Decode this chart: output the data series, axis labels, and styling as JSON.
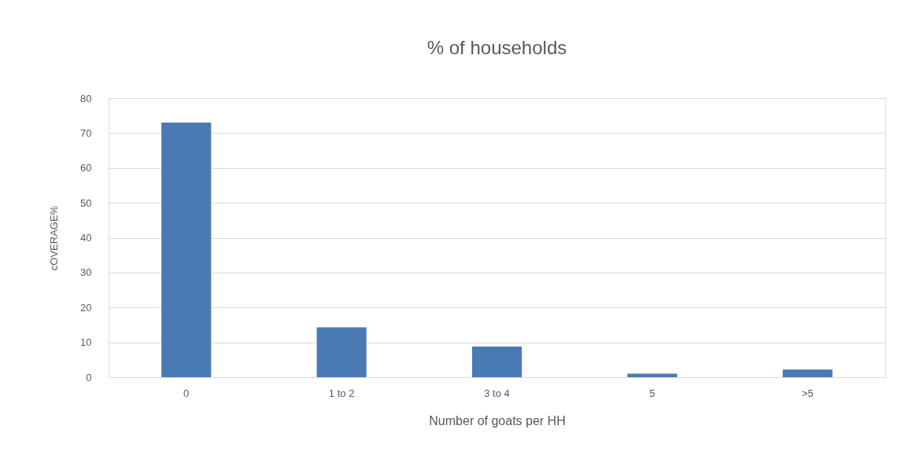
{
  "chart_data": {
    "type": "bar",
    "title": "% of households",
    "xlabel": "Number of goats per HH",
    "ylabel": "cOVERAGE%",
    "categories": [
      "0",
      "1 to 2",
      "3 to 4",
      "5",
      ">5"
    ],
    "values": [
      73,
      14.3,
      8.8,
      1,
      2.2
    ],
    "color": "#4a7ab4",
    "ylim": [
      0,
      80
    ],
    "yticks": [
      0,
      10,
      20,
      30,
      40,
      50,
      60,
      70,
      80
    ],
    "grid": "y"
  }
}
